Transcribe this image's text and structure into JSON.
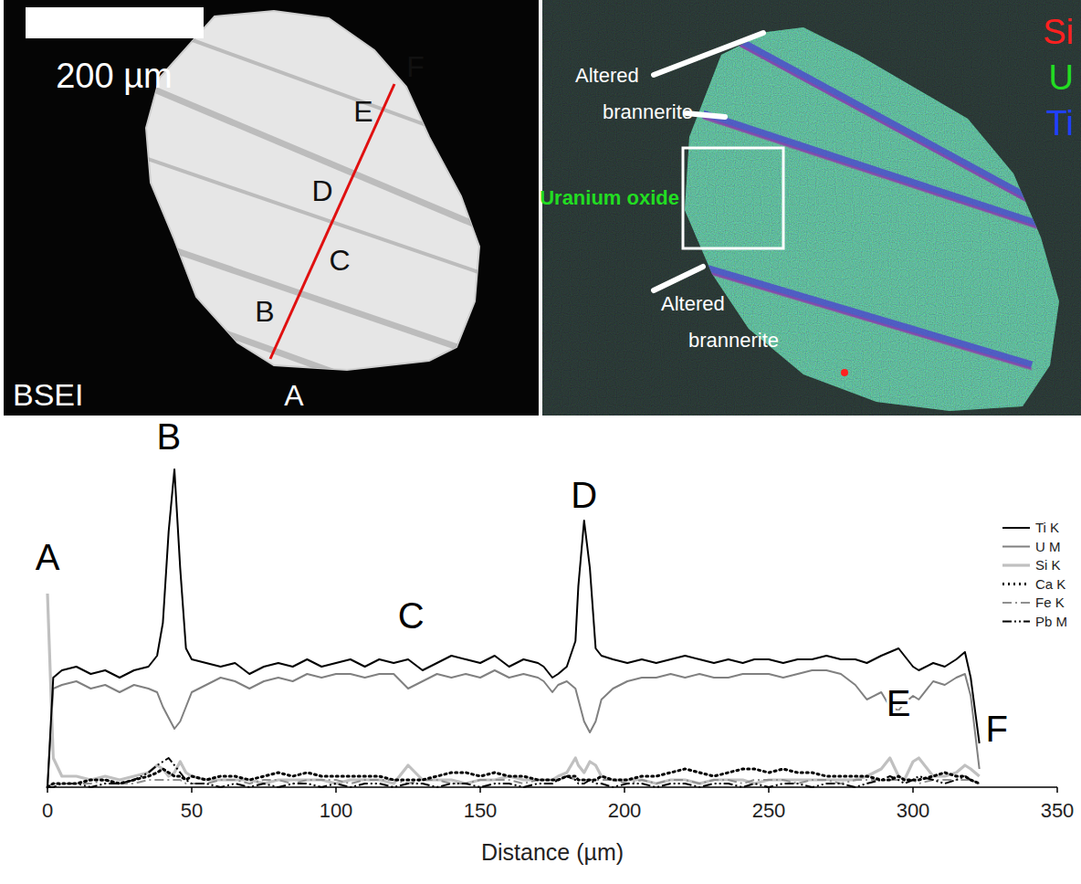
{
  "chart_data": {
    "type": "line",
    "x_label": "Distance (µm)",
    "x": [
      0,
      2,
      5,
      10,
      15,
      20,
      25,
      30,
      35,
      38,
      40,
      42,
      44,
      46,
      48,
      50,
      55,
      60,
      65,
      70,
      75,
      80,
      85,
      90,
      95,
      100,
      105,
      110,
      115,
      120,
      125,
      130,
      135,
      140,
      145,
      150,
      155,
      160,
      165,
      170,
      172,
      175,
      177,
      180,
      183,
      184,
      186,
      188,
      190,
      192,
      196,
      201,
      206,
      211,
      216,
      221,
      226,
      231,
      236,
      241,
      245,
      250,
      255,
      260,
      265,
      270,
      275,
      280,
      284,
      289,
      292,
      295,
      297,
      300,
      302,
      307,
      311,
      315,
      318,
      320,
      323
    ],
    "xlim": [
      0,
      350
    ],
    "xticks": [
      0,
      50,
      100,
      150,
      200,
      250,
      300,
      350
    ],
    "ylim": [
      0,
      100
    ],
    "tick_labels": "x",
    "legend": "upper right",
    "series": [
      {
        "name": "Ti K",
        "color": "#000000",
        "line_style": "solid",
        "values": [
          0,
          30,
          32,
          33,
          31,
          32,
          30,
          32,
          33,
          36,
          45,
          70,
          87,
          60,
          38,
          35,
          34,
          33,
          34,
          31,
          33,
          34,
          33,
          35,
          33,
          34,
          35,
          33,
          35,
          34,
          35,
          32,
          34,
          36,
          35,
          34,
          36,
          33,
          35,
          34,
          33,
          30,
          31,
          33,
          40,
          55,
          73,
          60,
          38,
          36,
          35,
          34,
          35,
          34,
          35,
          36,
          35,
          34,
          35,
          34,
          35,
          35,
          34,
          35,
          35,
          36,
          35,
          35,
          34,
          36,
          37,
          38,
          36,
          33,
          32,
          34,
          33,
          35,
          37,
          30,
          12
        ]
      },
      {
        "name": "U M",
        "color": "#808080",
        "line_style": "solid",
        "values": [
          0,
          27,
          28,
          29,
          27,
          28,
          26,
          28,
          27,
          26,
          22,
          19,
          16,
          18,
          22,
          26,
          28,
          30,
          29,
          27,
          29,
          30,
          29,
          31,
          30,
          31,
          31,
          30,
          31,
          31,
          27,
          29,
          31,
          30,
          31,
          30,
          32,
          30,
          31,
          30,
          29,
          26,
          28,
          29,
          27,
          24,
          18,
          15,
          18,
          24,
          27,
          29,
          30,
          30,
          31,
          30,
          31,
          30,
          30,
          31,
          31,
          31,
          30,
          31,
          32,
          32,
          31,
          28,
          24,
          26,
          22,
          21,
          23,
          25,
          24,
          29,
          28,
          30,
          31,
          25,
          5
        ]
      },
      {
        "name": "Si K",
        "color": "#c0c0c0",
        "line_style": "solid",
        "values": [
          53,
          8,
          3,
          3,
          2,
          3,
          2,
          3,
          4,
          6,
          5,
          3,
          4,
          7,
          4,
          3,
          2,
          2,
          2,
          2,
          1,
          2,
          2,
          2,
          2,
          1,
          2,
          2,
          2,
          1,
          6,
          2,
          2,
          2,
          1,
          2,
          2,
          3,
          2,
          2,
          2,
          2,
          3,
          4,
          8,
          6,
          4,
          7,
          6,
          3,
          2,
          2,
          2,
          1,
          2,
          2,
          1,
          2,
          2,
          2,
          1,
          2,
          2,
          2,
          2,
          2,
          2,
          2,
          3,
          5,
          8,
          3,
          2,
          7,
          8,
          3,
          3,
          4,
          6,
          5,
          3
        ]
      },
      {
        "name": "Ca K",
        "color": "#000000",
        "line_style": "dotted",
        "values": [
          0,
          1,
          1,
          1,
          2,
          2,
          1,
          2,
          3,
          4,
          5,
          4,
          3,
          3,
          2,
          3,
          2,
          3,
          3,
          2,
          3,
          4,
          3,
          4,
          3,
          3,
          3,
          3,
          3,
          2,
          2,
          2,
          3,
          4,
          4,
          3,
          4,
          3,
          3,
          2,
          2,
          2,
          2,
          3,
          3,
          2,
          2,
          2,
          2,
          3,
          2,
          2,
          3,
          3,
          4,
          5,
          4,
          3,
          4,
          5,
          5,
          4,
          5,
          4,
          4,
          3,
          3,
          3,
          3,
          2,
          2,
          3,
          2,
          2,
          2,
          3,
          4,
          3,
          3,
          2,
          1
        ]
      },
      {
        "name": "Fe K",
        "color": "#909090",
        "line_style": "dashdot",
        "values": [
          0,
          1,
          1,
          1,
          1,
          2,
          1,
          1,
          2,
          2,
          2,
          2,
          2,
          2,
          1,
          1,
          1,
          2,
          2,
          1,
          2,
          2,
          1,
          2,
          2,
          2,
          1,
          2,
          2,
          2,
          1,
          2,
          2,
          1,
          1,
          2,
          2,
          2,
          1,
          2,
          2,
          2,
          2,
          3,
          2,
          2,
          2,
          2,
          2,
          2,
          2,
          1,
          2,
          1,
          2,
          2,
          1,
          2,
          2,
          1,
          2,
          2,
          2,
          1,
          2,
          2,
          1,
          2,
          2,
          2,
          2,
          2,
          2,
          2,
          1,
          2,
          2,
          2,
          2,
          2,
          1
        ]
      },
      {
        "name": "Pb M",
        "color": "#000000",
        "line_style": "dashdotdot",
        "values": [
          0,
          0,
          1,
          1,
          0,
          1,
          1,
          2,
          4,
          6,
          7,
          8,
          6,
          4,
          2,
          1,
          1,
          0,
          1,
          0,
          1,
          0,
          1,
          1,
          0,
          1,
          0,
          1,
          1,
          0,
          1,
          1,
          0,
          1,
          1,
          0,
          1,
          1,
          0,
          1,
          1,
          1,
          2,
          3,
          2,
          1,
          1,
          2,
          1,
          1,
          0,
          1,
          1,
          0,
          1,
          1,
          0,
          1,
          1,
          0,
          1,
          0,
          1,
          1,
          0,
          1,
          1,
          0,
          1,
          2,
          3,
          2,
          1,
          2,
          3,
          2,
          1,
          2,
          3,
          2,
          1
        ]
      }
    ],
    "annotations": [
      {
        "text": "A",
        "x": 0,
        "y": 63
      },
      {
        "text": "B",
        "x": 42,
        "y": 96
      },
      {
        "text": "C",
        "x": 126,
        "y": 47
      },
      {
        "text": "D",
        "x": 186,
        "y": 80
      },
      {
        "text": "E",
        "x": 295,
        "y": 23
      },
      {
        "text": "F",
        "x": 329,
        "y": 16
      }
    ]
  },
  "micrographs": {
    "left": {
      "scale_bar": "200 µm",
      "label": "BSEI",
      "points": [
        "A",
        "B",
        "C",
        "D",
        "E",
        "F"
      ]
    },
    "right": {
      "channels": [
        {
          "text": "Si",
          "color": "#ff2020"
        },
        {
          "text": "U",
          "color": "#22dd22"
        },
        {
          "text": "Ti",
          "color": "#2040ff"
        }
      ],
      "labels": [
        "Altered brannerite",
        "Uranium oxide",
        "Altered brannerite"
      ],
      "label_color": "#22dd22"
    }
  }
}
